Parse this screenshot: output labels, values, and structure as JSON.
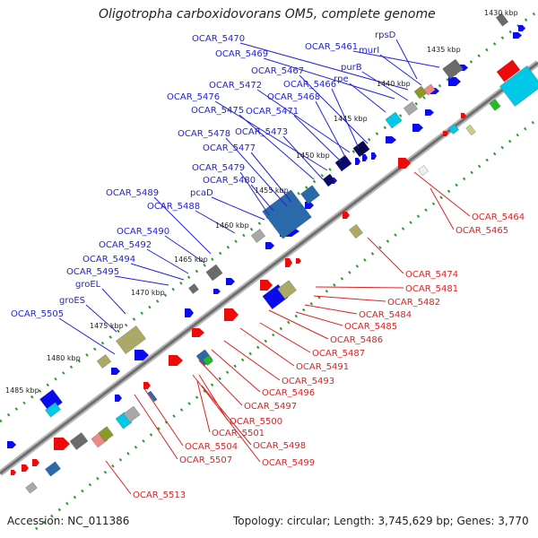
{
  "title": "Oligotropha carboxidovorans OM5, complete genome",
  "footer": {
    "accession": "Accession: NC_011386",
    "summary": "Topology: circular; Length: 3,745,629 bp; Genes: 3,770"
  },
  "colors": {
    "backbone": "#8a8a8a",
    "dots": "#2a9a2a",
    "forward_label": "#2222dd",
    "reverse_label": "#dd2222",
    "forward_gene": "#0a0aee",
    "reverse_gene": "#ee0a0a"
  },
  "kbp_ticks": [
    "1430 kbp",
    "1435 kbp",
    "1440 kbp",
    "1445 kbp",
    "1450 kbp",
    "1455 kbp",
    "1460 kbp",
    "1465 kbp",
    "1470 kbp",
    "1475 kbp",
    "1480 kbp",
    "1485 kbp"
  ],
  "forward_labels": [
    "OCAR_5470",
    "OCAR_5469",
    "OCAR_5461",
    "rpsD",
    "murI",
    "OCAR_5467",
    "purB",
    "OCAR_5472",
    "OCAR_5466",
    "rpe",
    "OCAR_5476",
    "OCAR_5468",
    "OCAR_5475",
    "OCAR_5471",
    "OCAR_5478",
    "OCAR_5473",
    "OCAR_5477",
    "OCAR_5479",
    "OCAR_5480",
    "pcaD",
    "OCAR_5489",
    "OCAR_5488",
    "OCAR_5490",
    "OCAR_5492",
    "OCAR_5494",
    "OCAR_5495",
    "groEL",
    "groES",
    "OCAR_5505"
  ],
  "reverse_labels": [
    "OCAR_5464",
    "OCAR_5465",
    "OCAR_5474",
    "OCAR_5481",
    "OCAR_5482",
    "OCAR_5484",
    "OCAR_5485",
    "OCAR_5486",
    "OCAR_5487",
    "OCAR_5491",
    "OCAR_5493",
    "OCAR_5496",
    "OCAR_5497",
    "OCAR_5500",
    "OCAR_5501",
    "OCAR_5498",
    "OCAR_5504",
    "OCAR_5507",
    "OCAR_5499",
    "OCAR_5513"
  ]
}
